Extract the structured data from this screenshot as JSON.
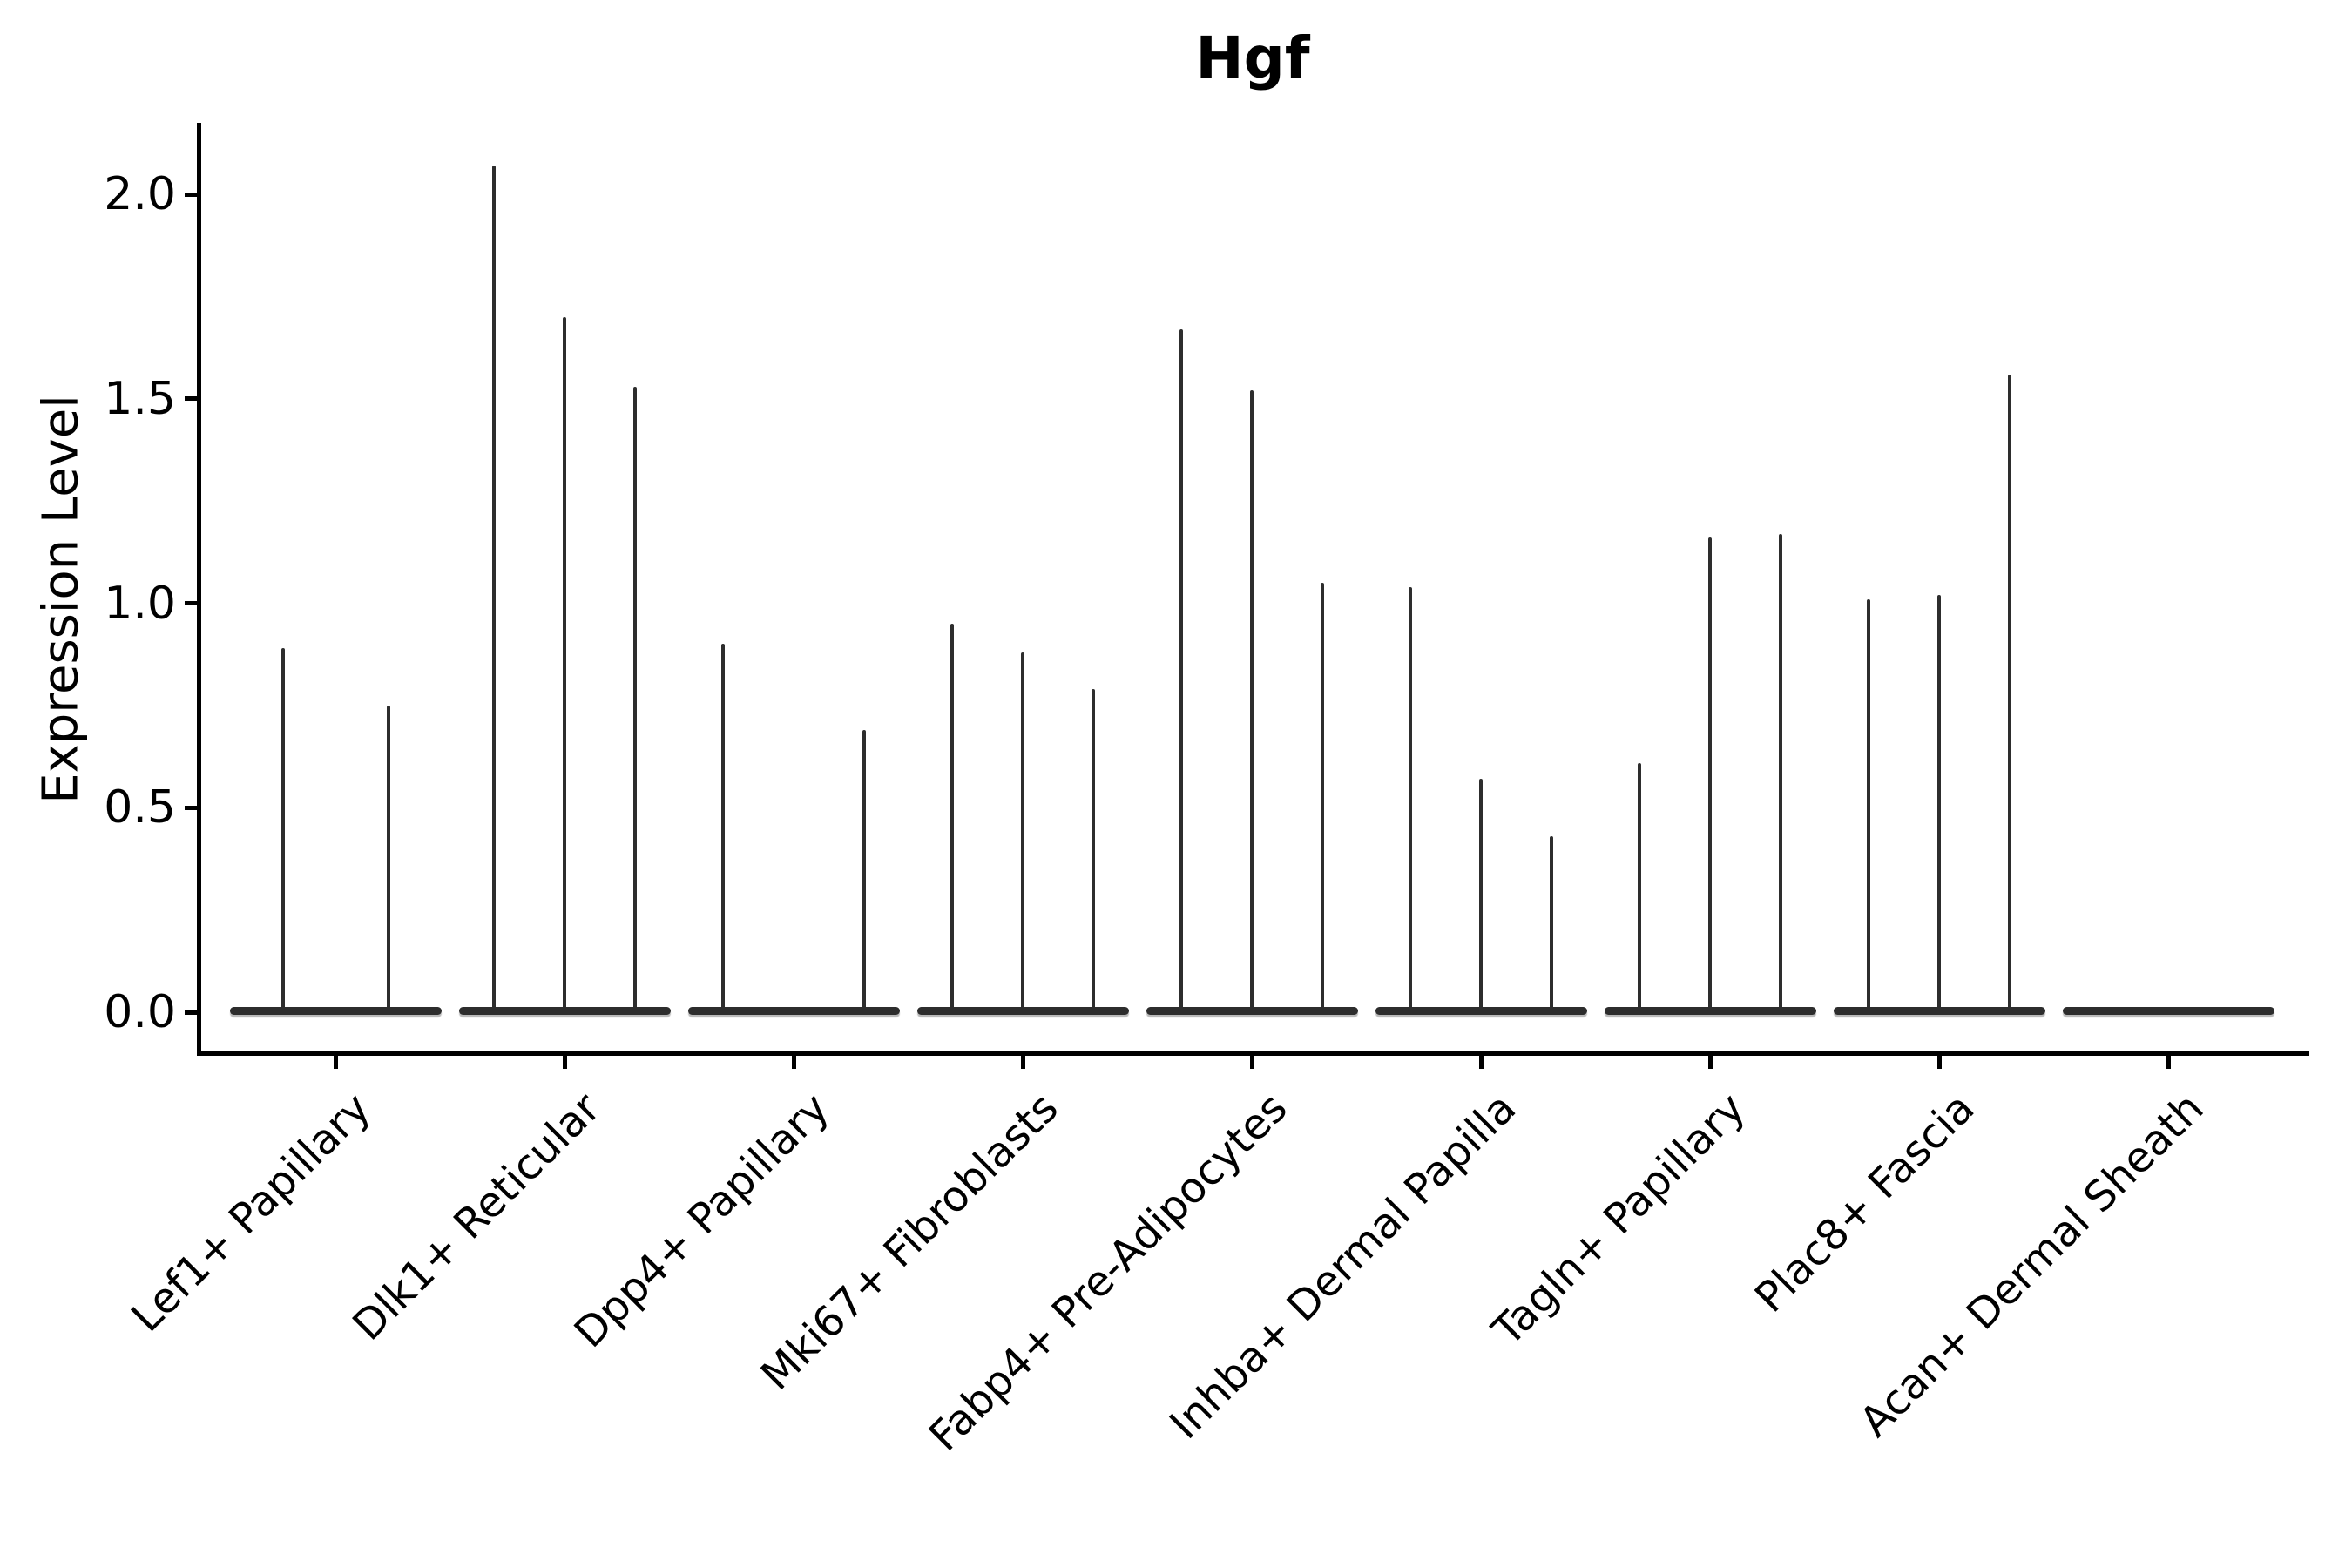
{
  "title": "Hgf",
  "colors": {
    "violin": "#2d2d2d",
    "axis": "#000000",
    "text": "#000000",
    "background": "#ffffff"
  },
  "chart_data": {
    "type": "violin",
    "title": "Hgf",
    "ylabel": "Expression Level",
    "xlabel": "",
    "ylim": [
      -0.09,
      2.18
    ],
    "yticks": [
      0.0,
      0.5,
      1.0,
      1.5,
      2.0
    ],
    "grid": false,
    "legend": false,
    "categories": [
      "Lef1+ Papillary",
      "Dlk1+ Reticular",
      "Dpp4+ Papillary",
      "Mki67+ Fibroblasts",
      "Fabp4+ Pre-Adipocytes",
      "Inhba+ Dermal Papilla",
      "Tagln+ Papillary",
      "Plac8+ Fascia",
      "Acan+ Dermal Sheath"
    ],
    "series": [
      {
        "category": "Lef1+ Papillary",
        "violin_maxima": [
          0.89,
          0.75
        ]
      },
      {
        "category": "Dlk1+ Reticular",
        "violin_maxima": [
          2.07,
          1.7,
          1.53
        ]
      },
      {
        "category": "Dpp4+ Papillary",
        "violin_maxima": [
          0.9,
          0.0,
          0.69
        ]
      },
      {
        "category": "Mki67+ Fibroblasts",
        "violin_maxima": [
          0.95,
          0.88,
          0.79
        ]
      },
      {
        "category": "Fabp4+ Pre-Adipocytes",
        "violin_maxima": [
          1.67,
          1.52,
          1.05
        ]
      },
      {
        "category": "Inhba+ Dermal Papilla",
        "violin_maxima": [
          1.04,
          0.57,
          0.43
        ]
      },
      {
        "category": "Tagln+ Papillary",
        "violin_maxima": [
          0.61,
          1.16,
          1.17
        ]
      },
      {
        "category": "Plac8+ Fascia",
        "violin_maxima": [
          1.01,
          1.02,
          1.56
        ]
      },
      {
        "category": "Acan+ Dermal Sheath",
        "violin_maxima": [
          0.0,
          0.0,
          0.0
        ]
      }
    ]
  }
}
